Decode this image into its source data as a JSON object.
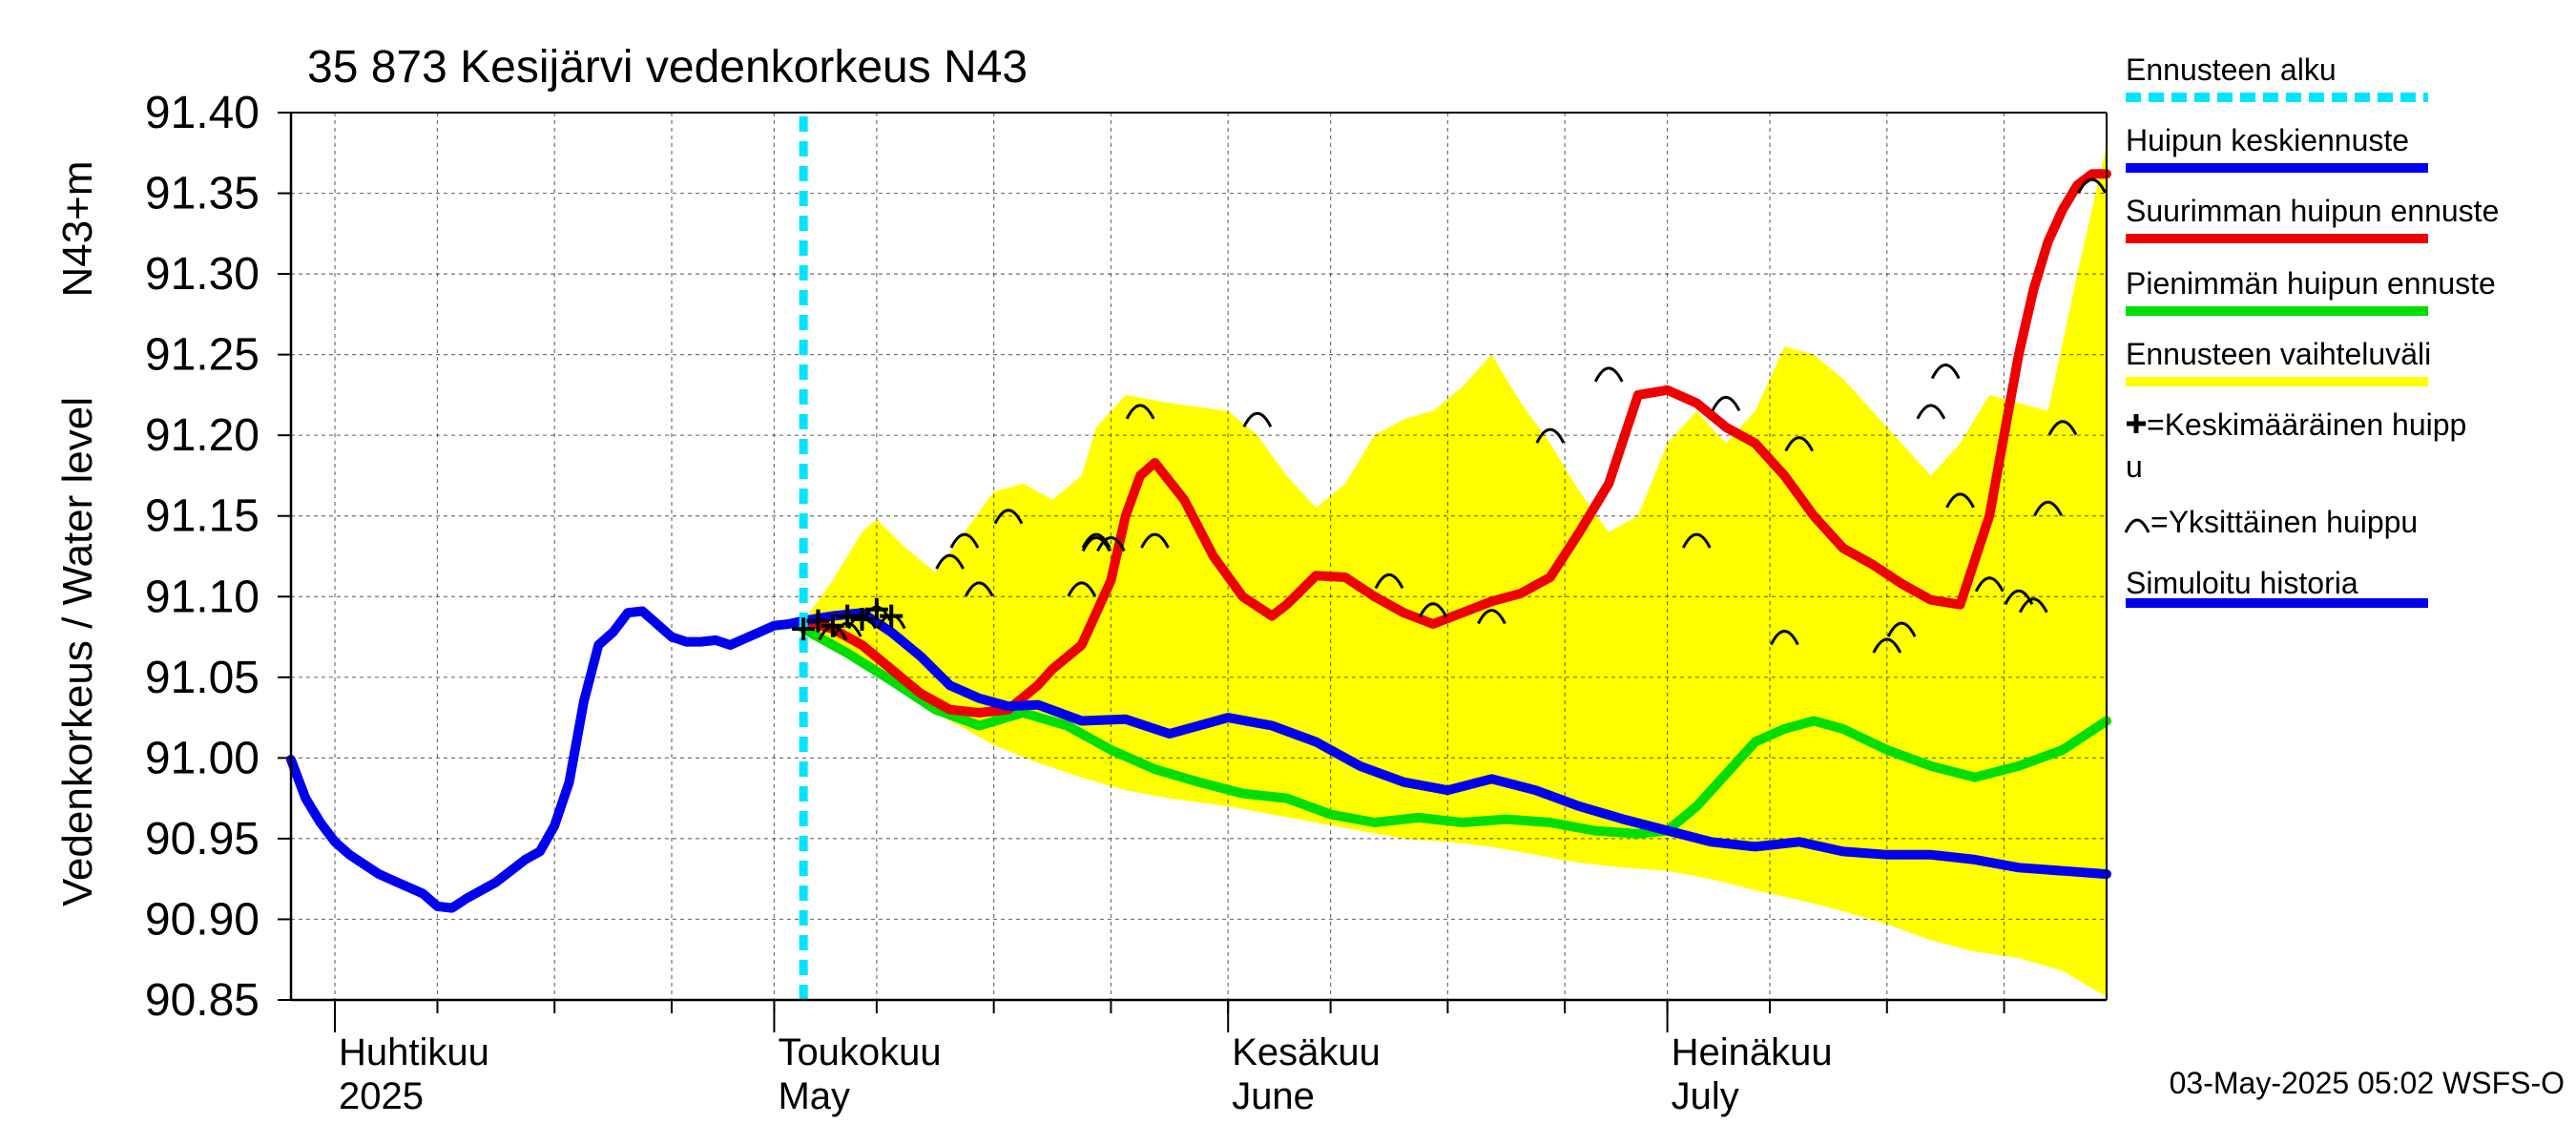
{
  "chart_data": {
    "type": "line",
    "title": "35 873 Kesijärvi vedenkorkeus N43",
    "ylabel_line1": "Vedenkorkeus / Water level",
    "ylabel_line2": "N43+m",
    "ylim": [
      90.85,
      91.4
    ],
    "yticks": [
      "91.40",
      "91.35",
      "91.30",
      "91.25",
      "91.20",
      "91.15",
      "91.10",
      "91.05",
      "91.00",
      "90.95",
      "90.90",
      "90.85"
    ],
    "xlim": [
      "2025-03-29",
      "2025-07-31"
    ],
    "month_labels": [
      {
        "date": "2025-04-01",
        "fi": "Huhtikuu",
        "en": "2025"
      },
      {
        "date": "2025-05-01",
        "fi": "Toukokuu",
        "en": "May"
      },
      {
        "date": "2025-06-01",
        "fi": "Kesäkuu",
        "en": "June"
      },
      {
        "date": "2025-07-01",
        "fi": "Heinäkuu",
        "en": "July"
      }
    ],
    "forecast_start": "2025-05-03",
    "footer": "03-May-2025 05:02 WSFS-O",
    "grid": true,
    "legend_position": "right",
    "legend": [
      {
        "label": "Ennusteen alku",
        "color": "#00e5ff",
        "style": "dashed"
      },
      {
        "label": "Huipun keskiennuste",
        "color": "#0000ee",
        "style": "line"
      },
      {
        "label": "Suurimman huipun ennuste",
        "color": "#ee0000",
        "style": "line"
      },
      {
        "label": "Pienimmän huipun ennuste",
        "color": "#00dd00",
        "style": "line"
      },
      {
        "label": "Ennusteen vaihteluväli",
        "color": "#ffff00",
        "style": "line"
      },
      {
        "label": "=Keskimääräinen huipp",
        "label2": "u",
        "color": "#000000",
        "style": "plus"
      },
      {
        "label": "=Yksittäinen huippu",
        "color": "#000000",
        "style": "arc"
      },
      {
        "label": "Simuloitu historia",
        "color": "#0000ee",
        "style": "line"
      }
    ],
    "series": [
      {
        "name": "Simuloitu historia",
        "color": "#0000ee",
        "x": [
          "2025-03-29",
          "2025-03-30",
          "2025-03-31",
          "2025-04-01",
          "2025-04-02",
          "2025-04-04",
          "2025-04-05",
          "2025-04-07",
          "2025-04-08",
          "2025-04-09",
          "2025-04-10",
          "2025-04-12",
          "2025-04-14",
          "2025-04-15",
          "2025-04-16",
          "2025-04-17",
          "2025-04-18",
          "2025-04-19",
          "2025-04-20",
          "2025-04-21",
          "2025-04-22",
          "2025-04-23",
          "2025-04-24",
          "2025-04-25",
          "2025-04-26",
          "2025-04-27",
          "2025-04-28",
          "2025-04-29",
          "2025-04-30",
          "2025-05-01",
          "2025-05-02",
          "2025-05-03"
        ],
        "values": [
          90.999,
          90.975,
          90.96,
          90.948,
          90.94,
          90.928,
          90.924,
          90.916,
          90.908,
          90.907,
          90.913,
          90.923,
          90.937,
          90.942,
          90.958,
          90.985,
          91.035,
          91.07,
          91.078,
          91.09,
          91.091,
          91.083,
          91.075,
          91.072,
          91.072,
          91.073,
          91.07,
          91.074,
          91.078,
          91.082,
          91.083,
          91.085
        ]
      },
      {
        "name": "Ennusteen vaihteluväli (yläraja)",
        "color": "#ffff00",
        "x": [
          "2025-05-03",
          "2025-05-05",
          "2025-05-07",
          "2025-05-08",
          "2025-05-10",
          "2025-05-12",
          "2025-05-14",
          "2025-05-16",
          "2025-05-18",
          "2025-05-20",
          "2025-05-22",
          "2025-05-23",
          "2025-05-25",
          "2025-05-28",
          "2025-06-01",
          "2025-06-03",
          "2025-06-05",
          "2025-06-07",
          "2025-06-09",
          "2025-06-11",
          "2025-06-13",
          "2025-06-15",
          "2025-06-17",
          "2025-06-19",
          "2025-06-21",
          "2025-06-23",
          "2025-06-25",
          "2025-06-27",
          "2025-06-29",
          "2025-07-01",
          "2025-07-03",
          "2025-07-05",
          "2025-07-07",
          "2025-07-09",
          "2025-07-11",
          "2025-07-13",
          "2025-07-15",
          "2025-07-17",
          "2025-07-19",
          "2025-07-21",
          "2025-07-23",
          "2025-07-25",
          "2025-07-27",
          "2025-07-29",
          "2025-07-31"
        ],
        "values": [
          91.085,
          91.11,
          91.14,
          91.148,
          91.13,
          91.115,
          91.14,
          91.165,
          91.17,
          91.16,
          91.175,
          91.205,
          91.225,
          91.22,
          91.215,
          91.2,
          91.175,
          91.155,
          91.17,
          91.2,
          91.21,
          91.215,
          91.23,
          91.25,
          91.22,
          91.195,
          91.165,
          91.14,
          91.15,
          91.195,
          91.215,
          91.195,
          91.215,
          91.255,
          91.25,
          91.235,
          91.215,
          91.195,
          91.175,
          91.195,
          91.225,
          91.22,
          91.215,
          91.3,
          91.38
        ]
      },
      {
        "name": "Ennusteen vaihteluväli (alaraja)",
        "color": "#ffff00",
        "x": [
          "2025-05-03",
          "2025-05-07",
          "2025-05-10",
          "2025-05-13",
          "2025-05-16",
          "2025-05-19",
          "2025-05-22",
          "2025-05-25",
          "2025-05-28",
          "2025-06-01",
          "2025-06-04",
          "2025-06-07",
          "2025-06-10",
          "2025-06-13",
          "2025-06-16",
          "2025-06-19",
          "2025-06-22",
          "2025-06-25",
          "2025-06-28",
          "2025-07-01",
          "2025-07-04",
          "2025-07-07",
          "2025-07-10",
          "2025-07-13",
          "2025-07-16",
          "2025-07-19",
          "2025-07-22",
          "2025-07-25",
          "2025-07-28",
          "2025-07-31"
        ],
        "values": [
          91.08,
          91.06,
          91.04,
          91.023,
          91.008,
          90.997,
          90.988,
          90.98,
          90.975,
          90.97,
          90.965,
          90.96,
          90.955,
          90.95,
          90.948,
          90.945,
          90.94,
          90.935,
          90.932,
          90.93,
          90.925,
          90.918,
          90.912,
          90.905,
          90.897,
          90.887,
          90.88,
          90.876,
          90.868,
          90.852
        ]
      },
      {
        "name": "Suurimman huipun ennuste",
        "color": "#ee0000",
        "x": [
          "2025-05-03",
          "2025-05-05",
          "2025-05-07",
          "2025-05-09",
          "2025-05-11",
          "2025-05-13",
          "2025-05-15",
          "2025-05-17",
          "2025-05-19",
          "2025-05-20",
          "2025-05-22",
          "2025-05-24",
          "2025-05-25",
          "2025-05-26",
          "2025-05-27",
          "2025-05-29",
          "2025-05-31",
          "2025-06-02",
          "2025-06-04",
          "2025-06-05",
          "2025-06-07",
          "2025-06-09",
          "2025-06-11",
          "2025-06-13",
          "2025-06-15",
          "2025-06-17",
          "2025-06-19",
          "2025-06-21",
          "2025-06-23",
          "2025-06-25",
          "2025-06-27",
          "2025-06-29",
          "2025-07-01",
          "2025-07-03",
          "2025-07-05",
          "2025-07-07",
          "2025-07-09",
          "2025-07-11",
          "2025-07-13",
          "2025-07-15",
          "2025-07-17",
          "2025-07-19",
          "2025-07-21",
          "2025-07-23",
          "2025-07-25",
          "2025-07-26",
          "2025-07-27",
          "2025-07-28",
          "2025-07-29",
          "2025-07-30",
          "2025-07-31"
        ],
        "values": [
          91.085,
          91.08,
          91.07,
          91.055,
          91.04,
          91.03,
          91.028,
          91.03,
          91.045,
          91.055,
          91.07,
          91.11,
          91.15,
          91.175,
          91.183,
          91.16,
          91.125,
          91.1,
          91.088,
          91.095,
          91.113,
          91.112,
          91.1,
          91.09,
          91.083,
          91.09,
          91.097,
          91.102,
          91.112,
          91.14,
          91.17,
          91.225,
          91.228,
          91.22,
          91.205,
          91.195,
          91.175,
          91.15,
          91.13,
          91.12,
          91.108,
          91.098,
          91.095,
          91.15,
          91.25,
          91.29,
          91.32,
          91.34,
          91.355,
          91.362,
          91.362
        ]
      },
      {
        "name": "Pienimmän huipun ennuste",
        "color": "#00dd00",
        "x": [
          "2025-05-03",
          "2025-05-06",
          "2025-05-09",
          "2025-05-12",
          "2025-05-15",
          "2025-05-18",
          "2025-05-21",
          "2025-05-24",
          "2025-05-27",
          "2025-05-30",
          "2025-06-02",
          "2025-06-05",
          "2025-06-08",
          "2025-06-11",
          "2025-06-14",
          "2025-06-17",
          "2025-06-20",
          "2025-06-23",
          "2025-06-26",
          "2025-06-29",
          "2025-07-01",
          "2025-07-03",
          "2025-07-05",
          "2025-07-07",
          "2025-07-09",
          "2025-07-11",
          "2025-07-13",
          "2025-07-16",
          "2025-07-19",
          "2025-07-22",
          "2025-07-25",
          "2025-07-28",
          "2025-07-31"
        ],
        "values": [
          91.08,
          91.065,
          91.048,
          91.03,
          91.02,
          91.028,
          91.02,
          91.005,
          90.993,
          90.985,
          90.978,
          90.975,
          90.965,
          90.96,
          90.963,
          90.96,
          90.962,
          90.96,
          90.955,
          90.953,
          90.955,
          90.97,
          90.99,
          91.01,
          91.018,
          91.023,
          91.018,
          91.005,
          90.995,
          90.988,
          90.995,
          91.005,
          91.023
        ]
      },
      {
        "name": "Huipun keskiennuste",
        "color": "#0000ee",
        "x": [
          "2025-05-03",
          "2025-05-05",
          "2025-05-07",
          "2025-05-09",
          "2025-05-11",
          "2025-05-13",
          "2025-05-15",
          "2025-05-17",
          "2025-05-19",
          "2025-05-22",
          "2025-05-25",
          "2025-05-28",
          "2025-06-01",
          "2025-06-04",
          "2025-06-07",
          "2025-06-10",
          "2025-06-13",
          "2025-06-16",
          "2025-06-19",
          "2025-06-22",
          "2025-06-25",
          "2025-06-28",
          "2025-07-01",
          "2025-07-04",
          "2025-07-07",
          "2025-07-10",
          "2025-07-13",
          "2025-07-16",
          "2025-07-19",
          "2025-07-22",
          "2025-07-25",
          "2025-07-28",
          "2025-07-31"
        ],
        "values": [
          91.085,
          91.088,
          91.09,
          91.078,
          91.063,
          91.045,
          91.037,
          91.032,
          91.033,
          91.023,
          91.024,
          91.015,
          91.025,
          91.02,
          91.01,
          90.995,
          90.985,
          90.98,
          90.987,
          90.98,
          90.97,
          90.962,
          90.955,
          90.948,
          90.945,
          90.948,
          90.942,
          90.94,
          90.94,
          90.937,
          90.932,
          90.93,
          90.928
        ]
      }
    ],
    "single_peaks": {
      "x": [
        "2025-05-05",
        "2025-05-06",
        "2025-05-07",
        "2025-05-08",
        "2025-05-09",
        "2025-05-13",
        "2025-05-14",
        "2025-05-15",
        "2025-05-17",
        "2025-05-22",
        "2025-05-23",
        "2025-05-23",
        "2025-05-24",
        "2025-05-26",
        "2025-05-27",
        "2025-06-03",
        "2025-06-12",
        "2025-06-15",
        "2025-06-19",
        "2025-06-23",
        "2025-06-27",
        "2025-07-03",
        "2025-07-05",
        "2025-07-09",
        "2025-07-10",
        "2025-07-16",
        "2025-07-17",
        "2025-07-19",
        "2025-07-20",
        "2025-07-21",
        "2025-07-23",
        "2025-07-25",
        "2025-07-26",
        "2025-07-27",
        "2025-07-28",
        "2025-07-30"
      ],
      "values": [
        91.078,
        91.08,
        91.085,
        91.09,
        91.085,
        91.122,
        91.135,
        91.105,
        91.15,
        91.105,
        91.133,
        91.135,
        91.133,
        91.215,
        91.135,
        91.21,
        91.11,
        91.092,
        91.088,
        91.2,
        91.238,
        91.135,
        91.22,
        91.075,
        91.195,
        91.07,
        91.08,
        91.215,
        91.24,
        91.16,
        91.108,
        91.1,
        91.095,
        91.155,
        91.205,
        91.355
      ]
    },
    "mean_peaks": {
      "x": [
        "2025-05-03",
        "2025-05-04",
        "2025-05-05",
        "2025-05-06",
        "2025-05-07",
        "2025-05-08",
        "2025-05-09"
      ],
      "values": [
        91.08,
        91.085,
        91.082,
        91.088,
        91.086,
        91.092,
        91.088
      ]
    }
  }
}
